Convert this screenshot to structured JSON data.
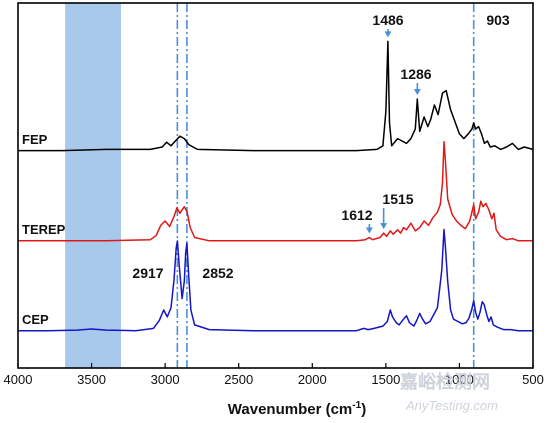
{
  "chart_data": {
    "type": "line",
    "xlabel": "Wavenumber (cm",
    "xlabel_sup": "-1",
    "xlabel_end": ")",
    "xlim": [
      4000,
      500
    ],
    "x_ticks": [
      4000,
      3500,
      3000,
      2500,
      2000,
      1500,
      1000,
      500
    ],
    "x_tick_labels": [
      "4000",
      "3500",
      "3000",
      "2500",
      "2000",
      "1500",
      "1000",
      "500"
    ],
    "y_ticks": "none",
    "highlight_band": {
      "x_range": [
        3680,
        3300
      ],
      "color": "#a9c9ec"
    },
    "dashdot_lines": [
      {
        "x": 2917,
        "color": "#4a90d9"
      },
      {
        "x": 2852,
        "color": "#4a90d9"
      },
      {
        "x": 903,
        "color": "#4a90d9"
      }
    ],
    "annotations": [
      {
        "text": "1486",
        "x": 1486,
        "arrow": true,
        "series": "FEP"
      },
      {
        "text": "1286",
        "x": 1286,
        "arrow": true,
        "series": "FEP"
      },
      {
        "text": "903",
        "x": 903,
        "arrow": false,
        "series": "FEP"
      },
      {
        "text": "1612",
        "x": 1612,
        "arrow": true,
        "series": "TEREP"
      },
      {
        "text": "1515",
        "x": 1515,
        "arrow": true,
        "series": "TEREP"
      },
      {
        "text": "2917",
        "x": 2917,
        "arrow": false,
        "series": "CEP"
      },
      {
        "text": "2852",
        "x": 2852,
        "arrow": false,
        "series": "CEP"
      }
    ],
    "series": [
      {
        "name": "FEP",
        "color": "#000000",
        "points": [
          [
            4000,
            0.02
          ],
          [
            3700,
            0.02
          ],
          [
            3400,
            0.03
          ],
          [
            3100,
            0.03
          ],
          [
            3020,
            0.05
          ],
          [
            2990,
            0.09
          ],
          [
            2960,
            0.06
          ],
          [
            2930,
            0.1
          ],
          [
            2900,
            0.14
          ],
          [
            2870,
            0.12
          ],
          [
            2840,
            0.07
          ],
          [
            2780,
            0.03
          ],
          [
            2400,
            0.02
          ],
          [
            2000,
            0.02
          ],
          [
            1700,
            0.02
          ],
          [
            1560,
            0.03
          ],
          [
            1520,
            0.06
          ],
          [
            1500,
            0.35
          ],
          [
            1486,
            0.93
          ],
          [
            1475,
            0.25
          ],
          [
            1460,
            0.06
          ],
          [
            1420,
            0.12
          ],
          [
            1390,
            0.1
          ],
          [
            1360,
            0.08
          ],
          [
            1330,
            0.12
          ],
          [
            1300,
            0.2
          ],
          [
            1286,
            0.45
          ],
          [
            1270,
            0.18
          ],
          [
            1240,
            0.3
          ],
          [
            1215,
            0.22
          ],
          [
            1195,
            0.28
          ],
          [
            1170,
            0.4
          ],
          [
            1145,
            0.32
          ],
          [
            1115,
            0.5
          ],
          [
            1090,
            0.52
          ],
          [
            1060,
            0.36
          ],
          [
            1030,
            0.26
          ],
          [
            1000,
            0.16
          ],
          [
            970,
            0.12
          ],
          [
            940,
            0.16
          ],
          [
            915,
            0.2
          ],
          [
            903,
            0.25
          ],
          [
            890,
            0.2
          ],
          [
            870,
            0.22
          ],
          [
            850,
            0.16
          ],
          [
            830,
            0.08
          ],
          [
            810,
            0.1
          ],
          [
            790,
            0.05
          ],
          [
            760,
            0.06
          ],
          [
            720,
            0.03
          ],
          [
            680,
            0.05
          ],
          [
            640,
            0.08
          ],
          [
            600,
            0.03
          ],
          [
            560,
            0.05
          ],
          [
            500,
            0.03
          ]
        ]
      },
      {
        "name": "TEREP",
        "color": "#e01818",
        "points": [
          [
            4000,
            0.02
          ],
          [
            3700,
            0.02
          ],
          [
            3400,
            0.02
          ],
          [
            3100,
            0.03
          ],
          [
            3060,
            0.07
          ],
          [
            3030,
            0.16
          ],
          [
            3000,
            0.2
          ],
          [
            2970,
            0.15
          ],
          [
            2940,
            0.24
          ],
          [
            2920,
            0.32
          ],
          [
            2900,
            0.27
          ],
          [
            2870,
            0.33
          ],
          [
            2850,
            0.28
          ],
          [
            2830,
            0.14
          ],
          [
            2800,
            0.05
          ],
          [
            2700,
            0.02
          ],
          [
            2300,
            0.02
          ],
          [
            2000,
            0.02
          ],
          [
            1700,
            0.02
          ],
          [
            1640,
            0.03
          ],
          [
            1612,
            0.05
          ],
          [
            1590,
            0.03
          ],
          [
            1540,
            0.05
          ],
          [
            1515,
            0.09
          ],
          [
            1495,
            0.06
          ],
          [
            1470,
            0.11
          ],
          [
            1450,
            0.08
          ],
          [
            1420,
            0.12
          ],
          [
            1400,
            0.09
          ],
          [
            1380,
            0.14
          ],
          [
            1360,
            0.12
          ],
          [
            1330,
            0.18
          ],
          [
            1300,
            0.11
          ],
          [
            1270,
            0.14
          ],
          [
            1240,
            0.2
          ],
          [
            1210,
            0.16
          ],
          [
            1180,
            0.23
          ],
          [
            1150,
            0.28
          ],
          [
            1130,
            0.35
          ],
          [
            1115,
            0.55
          ],
          [
            1105,
            0.92
          ],
          [
            1095,
            0.75
          ],
          [
            1080,
            0.4
          ],
          [
            1050,
            0.26
          ],
          [
            1020,
            0.2
          ],
          [
            990,
            0.16
          ],
          [
            960,
            0.13
          ],
          [
            930,
            0.2
          ],
          [
            915,
            0.28
          ],
          [
            903,
            0.35
          ],
          [
            890,
            0.22
          ],
          [
            870,
            0.28
          ],
          [
            855,
            0.38
          ],
          [
            840,
            0.33
          ],
          [
            820,
            0.36
          ],
          [
            800,
            0.3
          ],
          [
            780,
            0.22
          ],
          [
            765,
            0.27
          ],
          [
            750,
            0.12
          ],
          [
            720,
            0.06
          ],
          [
            680,
            0.03
          ],
          [
            640,
            0.04
          ],
          [
            600,
            0.02
          ],
          [
            500,
            0.02
          ]
        ]
      },
      {
        "name": "CEP",
        "color": "#1515c8",
        "points": [
          [
            4000,
            0.02
          ],
          [
            3800,
            0.02
          ],
          [
            3600,
            0.025
          ],
          [
            3500,
            0.035
          ],
          [
            3400,
            0.025
          ],
          [
            3200,
            0.02
          ],
          [
            3080,
            0.04
          ],
          [
            3040,
            0.11
          ],
          [
            3010,
            0.2
          ],
          [
            2985,
            0.14
          ],
          [
            2960,
            0.22
          ],
          [
            2940,
            0.46
          ],
          [
            2925,
            0.74
          ],
          [
            2917,
            0.8
          ],
          [
            2905,
            0.6
          ],
          [
            2885,
            0.3
          ],
          [
            2870,
            0.45
          ],
          [
            2860,
            0.7
          ],
          [
            2852,
            0.78
          ],
          [
            2840,
            0.5
          ],
          [
            2825,
            0.2
          ],
          [
            2800,
            0.07
          ],
          [
            2700,
            0.03
          ],
          [
            2400,
            0.02
          ],
          [
            2000,
            0.02
          ],
          [
            1800,
            0.02
          ],
          [
            1700,
            0.02
          ],
          [
            1650,
            0.04
          ],
          [
            1620,
            0.03
          ],
          [
            1580,
            0.04
          ],
          [
            1520,
            0.06
          ],
          [
            1490,
            0.1
          ],
          [
            1470,
            0.2
          ],
          [
            1455,
            0.14
          ],
          [
            1430,
            0.09
          ],
          [
            1410,
            0.07
          ],
          [
            1380,
            0.12
          ],
          [
            1360,
            0.15
          ],
          [
            1340,
            0.09
          ],
          [
            1310,
            0.06
          ],
          [
            1290,
            0.11
          ],
          [
            1270,
            0.17
          ],
          [
            1250,
            0.12
          ],
          [
            1230,
            0.08
          ],
          [
            1200,
            0.1
          ],
          [
            1170,
            0.17
          ],
          [
            1150,
            0.22
          ],
          [
            1135,
            0.38
          ],
          [
            1120,
            0.55
          ],
          [
            1105,
            0.9
          ],
          [
            1095,
            0.75
          ],
          [
            1080,
            0.45
          ],
          [
            1060,
            0.2
          ],
          [
            1040,
            0.12
          ],
          [
            1010,
            0.1
          ],
          [
            980,
            0.08
          ],
          [
            955,
            0.09
          ],
          [
            935,
            0.13
          ],
          [
            915,
            0.21
          ],
          [
            903,
            0.28
          ],
          [
            890,
            0.18
          ],
          [
            875,
            0.12
          ],
          [
            860,
            0.18
          ],
          [
            845,
            0.27
          ],
          [
            832,
            0.25
          ],
          [
            815,
            0.16
          ],
          [
            800,
            0.1
          ],
          [
            785,
            0.14
          ],
          [
            770,
            0.07
          ],
          [
            740,
            0.05
          ],
          [
            700,
            0.03
          ],
          [
            650,
            0.03
          ],
          [
            600,
            0.02
          ],
          [
            500,
            0.02
          ]
        ]
      }
    ]
  },
  "watermark": {
    "line1": "嘉峪检测网",
    "line2": "AnyTesting.com"
  }
}
